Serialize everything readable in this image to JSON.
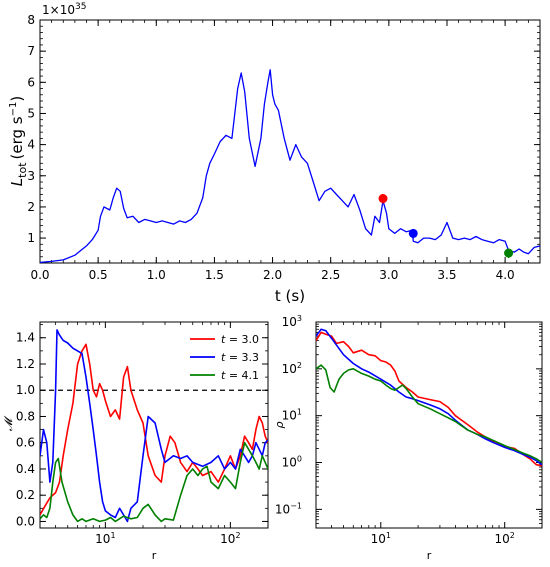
{
  "chart_data": [
    {
      "type": "line",
      "ylabel_main": "L",
      "ylabel_sub": "tot",
      "ylabel_units_pre": "(erg s",
      "ylabel_units_sup": "−1",
      "ylabel_units_post": ")",
      "xlabel": "t (s)",
      "offset_text_base": "1×10",
      "offset_text_exp": "35",
      "xlim": [
        0.0,
        4.3
      ],
      "ylim": [
        0.2,
        8.0
      ],
      "xticks": [
        0.0,
        0.5,
        1.0,
        1.5,
        2.0,
        2.5,
        3.0,
        3.5,
        4.0
      ],
      "yticks": [
        1,
        2,
        3,
        4,
        5,
        6,
        7,
        8
      ],
      "series": [
        {
          "color": "#0000ff",
          "x": [
            0.0,
            0.1,
            0.2,
            0.3,
            0.35,
            0.4,
            0.45,
            0.5,
            0.52,
            0.55,
            0.6,
            0.63,
            0.66,
            0.69,
            0.72,
            0.75,
            0.8,
            0.85,
            0.9,
            0.95,
            1.0,
            1.05,
            1.1,
            1.15,
            1.2,
            1.25,
            1.3,
            1.35,
            1.4,
            1.43,
            1.46,
            1.5,
            1.55,
            1.6,
            1.65,
            1.7,
            1.73,
            1.76,
            1.8,
            1.85,
            1.9,
            1.93,
            1.96,
            1.98,
            2.0,
            2.02,
            2.05,
            2.1,
            2.15,
            2.2,
            2.25,
            2.3,
            2.35,
            2.4,
            2.45,
            2.5,
            2.55,
            2.6,
            2.65,
            2.7,
            2.75,
            2.8,
            2.85,
            2.88,
            2.92,
            2.95,
            2.98,
            3.0,
            3.05,
            3.1,
            3.15,
            3.2,
            3.21,
            3.25,
            3.3,
            3.35,
            3.4,
            3.45,
            3.5,
            3.55,
            3.6,
            3.65,
            3.7,
            3.75,
            3.8,
            3.85,
            3.9,
            3.95,
            4.0,
            4.03,
            4.08,
            4.12,
            4.16,
            4.2,
            4.25,
            4.3
          ],
          "y": [
            0.22,
            0.25,
            0.3,
            0.45,
            0.6,
            0.75,
            0.95,
            1.25,
            1.7,
            2.0,
            1.9,
            2.3,
            2.6,
            2.5,
            1.95,
            1.65,
            1.7,
            1.5,
            1.6,
            1.55,
            1.5,
            1.55,
            1.5,
            1.45,
            1.55,
            1.5,
            1.6,
            1.8,
            2.3,
            3.0,
            3.4,
            3.7,
            4.1,
            4.3,
            4.2,
            5.8,
            6.3,
            5.7,
            4.2,
            3.3,
            4.2,
            5.3,
            6.0,
            6.4,
            5.6,
            5.3,
            5.1,
            4.2,
            3.5,
            4.0,
            3.6,
            3.4,
            2.8,
            2.2,
            2.5,
            2.6,
            2.4,
            2.2,
            2.0,
            2.4,
            1.9,
            1.3,
            1.1,
            1.7,
            1.5,
            2.2,
            1.8,
            1.3,
            1.15,
            1.3,
            1.2,
            1.25,
            0.9,
            0.85,
            1.0,
            1.0,
            0.95,
            1.1,
            1.5,
            1.0,
            0.95,
            1.0,
            0.95,
            1.05,
            0.95,
            0.9,
            0.85,
            0.95,
            0.9,
            0.6,
            0.55,
            0.65,
            0.55,
            0.5,
            0.7,
            0.75
          ]
        }
      ],
      "markers": [
        {
          "x": 2.95,
          "y": 2.27,
          "color": "#ff0000"
        },
        {
          "x": 3.21,
          "y": 1.15,
          "color": "#0000ff"
        },
        {
          "x": 4.03,
          "y": 0.52,
          "color": "#008000"
        }
      ]
    },
    {
      "type": "line",
      "xscale": "log",
      "xlim": [
        3.0,
        200.0
      ],
      "ylim": [
        -0.05,
        1.52
      ],
      "xlabel": "r",
      "ylabel": "𝓜",
      "xticks": [
        10,
        100
      ],
      "xtick_base": "10",
      "xtick_exps": [
        "1",
        "2"
      ],
      "yticks": [
        0.0,
        0.2,
        0.4,
        0.6,
        0.8,
        1.0,
        1.2,
        1.4
      ],
      "hline": 1.0,
      "legend": "top-right",
      "series": [
        {
          "name": "t = 3.0",
          "name_italic": "t",
          "name_rest": " = 3.0",
          "color": "#ff0000",
          "x": [
            3.0,
            3.3,
            3.6,
            4.0,
            4.3,
            4.6,
            5.0,
            5.5,
            6.0,
            6.5,
            7.0,
            7.5,
            8.0,
            8.5,
            9.0,
            9.5,
            10.0,
            11.0,
            12.0,
            13.0,
            14.0,
            15.0,
            16.0,
            18.0,
            20.0,
            22.0,
            25.0,
            28.0,
            30.0,
            33.0,
            36.0,
            40.0,
            45.0,
            50.0,
            55.0,
            60.0,
            70.0,
            80.0,
            90.0,
            100.0,
            110.0,
            120.0,
            130.0,
            140.0,
            150.0,
            160.0,
            170.0,
            180.0,
            190.0,
            200.0
          ],
          "y": [
            0.05,
            0.12,
            0.18,
            0.22,
            0.3,
            0.5,
            0.7,
            0.9,
            1.2,
            1.3,
            1.35,
            1.2,
            1.0,
            0.95,
            1.05,
            1.0,
            0.92,
            0.8,
            0.85,
            0.78,
            1.1,
            1.18,
            1.0,
            0.85,
            0.75,
            0.5,
            0.35,
            0.3,
            0.5,
            0.65,
            0.6,
            0.45,
            0.38,
            0.45,
            0.4,
            0.35,
            0.38,
            0.3,
            0.4,
            0.5,
            0.4,
            0.5,
            0.65,
            0.6,
            0.55,
            0.7,
            0.8,
            0.75,
            0.65,
            0.6
          ]
        },
        {
          "name": "t = 3.3",
          "name_italic": "t",
          "name_rest": " = 3.3",
          "color": "#0000ff",
          "x": [
            3.0,
            3.2,
            3.4,
            3.6,
            3.8,
            4.0,
            4.1,
            4.3,
            4.6,
            5.0,
            5.5,
            6.0,
            6.5,
            7.0,
            7.5,
            8.0,
            8.5,
            9.0,
            9.5,
            10.0,
            11.0,
            12.0,
            13.0,
            14.0,
            15.0,
            16.0,
            18.0,
            20.0,
            22.0,
            25.0,
            28.0,
            30.0,
            35.0,
            40.0,
            45.0,
            50.0,
            60.0,
            70.0,
            80.0,
            90.0,
            100.0,
            110.0,
            120.0,
            130.0,
            140.0,
            150.0,
            160.0,
            170.0,
            180.0,
            190.0,
            200.0
          ],
          "y": [
            0.5,
            0.7,
            0.6,
            0.3,
            0.45,
            1.0,
            1.46,
            1.42,
            1.38,
            1.36,
            1.32,
            1.3,
            1.28,
            1.1,
            0.9,
            0.7,
            0.5,
            0.3,
            0.15,
            0.08,
            0.05,
            0.03,
            0.1,
            0.05,
            0.0,
            0.1,
            0.15,
            0.5,
            0.8,
            0.75,
            0.55,
            0.45,
            0.5,
            0.48,
            0.5,
            0.45,
            0.42,
            0.45,
            0.5,
            0.4,
            0.45,
            0.4,
            0.55,
            0.5,
            0.45,
            0.5,
            0.6,
            0.55,
            0.5,
            0.6,
            0.62
          ]
        },
        {
          "name": "t = 4.1",
          "name_italic": "t",
          "name_rest": " = 4.1",
          "color": "#008000",
          "x": [
            3.0,
            3.2,
            3.4,
            3.6,
            3.8,
            4.0,
            4.2,
            4.5,
            5.0,
            5.5,
            6.0,
            6.5,
            7.0,
            8.0,
            9.0,
            10.0,
            11.0,
            12.0,
            14.0,
            16.0,
            18.0,
            20.0,
            22.0,
            25.0,
            28.0,
            30.0,
            35.0,
            40.0,
            45.0,
            50.0,
            55.0,
            60.0,
            65.0,
            70.0,
            80.0,
            90.0,
            100.0,
            110.0,
            120.0,
            130.0,
            140.0,
            150.0,
            160.0,
            170.0,
            180.0,
            190.0,
            200.0
          ],
          "y": [
            0.02,
            0.05,
            0.03,
            0.1,
            0.3,
            0.45,
            0.48,
            0.3,
            0.15,
            0.05,
            0.0,
            0.02,
            0.0,
            0.02,
            0.0,
            0.01,
            0.03,
            0.0,
            0.04,
            0.02,
            0.03,
            0.1,
            0.13,
            0.05,
            0.0,
            0.02,
            0.01,
            0.2,
            0.35,
            0.4,
            0.35,
            0.4,
            0.42,
            0.3,
            0.25,
            0.35,
            0.3,
            0.25,
            0.45,
            0.6,
            0.55,
            0.5,
            0.45,
            0.4,
            0.5,
            0.45,
            0.4
          ]
        }
      ]
    },
    {
      "type": "line",
      "xscale": "log",
      "yscale": "log",
      "xlim": [
        3.0,
        200.0
      ],
      "ylim": [
        0.04,
        1000.0
      ],
      "xlabel": "r",
      "ylabel": "ρ",
      "xticks": [
        10,
        100
      ],
      "xtick_base": "10",
      "xtick_exps": [
        "1",
        "2"
      ],
      "yticks": [
        0.1,
        1,
        10,
        100,
        1000
      ],
      "ytick_base": "10",
      "ytick_exps": [
        "−1",
        "0",
        "1",
        "2",
        "3"
      ],
      "series": [
        {
          "color": "#ff0000",
          "x": [
            3.0,
            3.3,
            3.6,
            4.0,
            4.4,
            5.0,
            5.5,
            6.0,
            7.0,
            8.0,
            9.0,
            10.0,
            11.0,
            12.0,
            13.0,
            14.0,
            16.0,
            18.0,
            20.0,
            25.0,
            30.0,
            35.0,
            40.0,
            50.0,
            60.0,
            70.0,
            80.0,
            100.0,
            120.0,
            140.0,
            160.0,
            180.0,
            200.0
          ],
          "y": [
            400,
            600,
            550,
            500,
            350,
            380,
            300,
            220,
            250,
            200,
            190,
            150,
            140,
            120,
            90,
            55,
            40,
            32,
            25,
            22,
            20,
            15,
            10,
            6.5,
            4.5,
            3.5,
            2.8,
            2.2,
            2.0,
            1.5,
            1.2,
            0.9,
            0.85
          ]
        },
        {
          "color": "#0000ff",
          "x": [
            3.0,
            3.3,
            3.6,
            4.0,
            4.4,
            5.0,
            6.0,
            7.0,
            8.0,
            10.0,
            12.0,
            14.0,
            16.0,
            18.0,
            20.0,
            25.0,
            30.0,
            35.0,
            40.0,
            50.0,
            60.0,
            70.0,
            80.0,
            100.0,
            120.0,
            140.0,
            160.0,
            180.0,
            200.0
          ],
          "y": [
            500,
            700,
            650,
            450,
            320,
            200,
            130,
            100,
            85,
            60,
            45,
            32,
            25,
            23,
            21,
            17,
            14,
            11,
            8.0,
            5.0,
            4.0,
            3.2,
            2.7,
            2.1,
            1.8,
            1.5,
            1.3,
            1.1,
            0.9
          ]
        },
        {
          "color": "#008000",
          "x": [
            3.0,
            3.3,
            3.6,
            3.9,
            4.2,
            4.6,
            5.0,
            5.5,
            6.0,
            7.0,
            8.0,
            9.0,
            10.0,
            11.0,
            12.0,
            13.0,
            14.0,
            15.0,
            16.0,
            18.0,
            20.0,
            25.0,
            30.0,
            35.0,
            40.0,
            50.0,
            60.0,
            70.0,
            80.0,
            100.0,
            120.0,
            140.0,
            160.0,
            180.0,
            200.0
          ],
          "y": [
            100,
            120,
            95,
            40,
            32,
            60,
            80,
            95,
            100,
            80,
            70,
            60,
            55,
            45,
            38,
            35,
            40,
            45,
            38,
            25,
            18,
            14,
            11,
            9.0,
            7.5,
            5.0,
            4.0,
            3.5,
            3.0,
            2.3,
            1.9,
            1.6,
            1.4,
            1.2,
            1.0
          ]
        }
      ]
    }
  ]
}
